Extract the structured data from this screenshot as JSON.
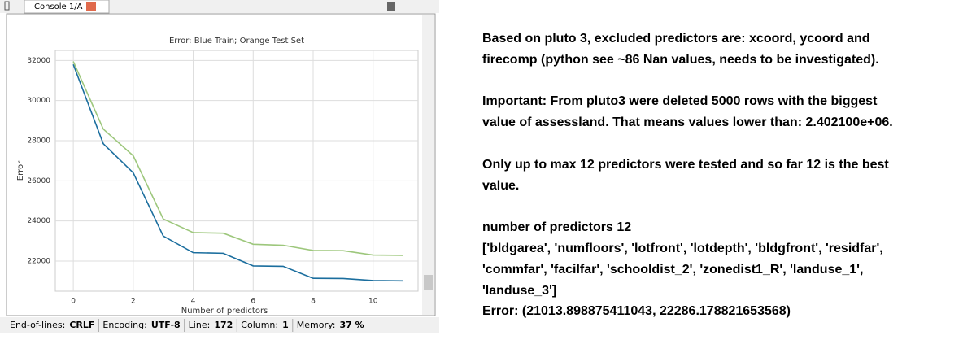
{
  "console": {
    "tab": "Console 1/A"
  },
  "chart_data": {
    "type": "line",
    "title": "Error: Blue Train; Orange Test Set",
    "x_label": "Number of predictors",
    "y_label": "Error",
    "x": [
      0,
      1,
      2,
      3,
      4,
      5,
      6,
      7,
      8,
      9,
      10,
      11
    ],
    "series": [
      {
        "color": "#1b6e9e",
        "values": [
          31800,
          27850,
          26400,
          23250,
          22420,
          22390,
          21760,
          21740,
          21140,
          21130,
          21030,
          21013.9
        ]
      },
      {
        "color": "#9dc77c",
        "values": [
          31950,
          28580,
          27250,
          24100,
          23420,
          23390,
          22840,
          22790,
          22530,
          22520,
          22300,
          22286.2
        ]
      }
    ],
    "xlim": [
      -0.6,
      11.5
    ],
    "ylim": [
      20500,
      32500
    ],
    "xticks": [
      0,
      2,
      4,
      6,
      8,
      10
    ],
    "yticks": [
      22000,
      24000,
      26000,
      28000,
      30000,
      32000
    ],
    "grid": true
  },
  "status_bar": [
    [
      "End-of-lines:",
      "CRLF"
    ],
    [
      "Encoding:",
      "UTF-8"
    ],
    [
      "Line:",
      "172"
    ],
    [
      "Column:",
      "1"
    ],
    [
      "Memory:",
      "37 %"
    ]
  ],
  "notes": [
    [
      "Based on pluto 3, excluded predictors are: xcoord, ycoord and",
      "firecomp (python see ~86 Nan values, needs to be investigated)."
    ],
    [
      "Important: From pluto3 were deleted 5000 rows with the biggest",
      "value of assessland. That means values lower than: 2.402100e+06."
    ],
    [
      "Only up to max 12 predictors were tested and so far 12 is the best",
      "value."
    ],
    [
      "number of predictors 12",
      "['bldgarea', 'numfloors', 'lotfront', 'lotdepth', 'bldgfront', 'residfar',",
      "'commfar', 'facilfar', 'schooldist_2', 'zonedist1_R', 'landuse_1',",
      "'landuse_3']",
      "Error: (21013.898875411043, 22286.178821653568)"
    ]
  ]
}
